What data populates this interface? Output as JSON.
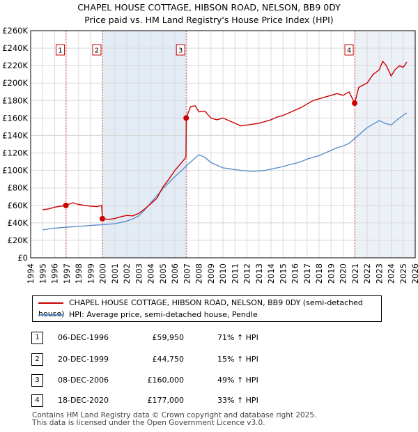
{
  "title_line1": "CHAPEL HOUSE COTTAGE, HIBSON ROAD, NELSON, BB9 0DY",
  "title_line2": "Price paid vs. HM Land Registry's House Price Index (HPI)",
  "chart_data": {
    "type": "line",
    "title": "CHAPEL HOUSE COTTAGE, HIBSON ROAD, NELSON, BB9 0DY",
    "subtitle": "Price paid vs. HM Land Registry's House Price Index (HPI)",
    "xlim": [
      1995.0,
      2026.0
    ],
    "ylim": [
      0,
      260000
    ],
    "x_ticks": [
      1994,
      1995,
      1996,
      1997,
      1998,
      1999,
      2000,
      2001,
      2002,
      2003,
      2004,
      2005,
      2006,
      2007,
      2008,
      2009,
      2010,
      2011,
      2012,
      2013,
      2014,
      2015,
      2016,
      2017,
      2018,
      2019,
      2020,
      2021,
      2022,
      2023,
      2024,
      2025,
      2026
    ],
    "y_ticks": [
      0,
      20000,
      40000,
      60000,
      80000,
      100000,
      120000,
      140000,
      160000,
      180000,
      200000,
      220000,
      240000,
      260000
    ],
    "y_tick_labels": [
      "£0",
      "£20K",
      "£40K",
      "£60K",
      "£80K",
      "£100K",
      "£120K",
      "£140K",
      "£160K",
      "£180K",
      "£200K",
      "£220K",
      "£240K",
      "£260K"
    ],
    "grid": true,
    "series": [
      {
        "name": "CHAPEL HOUSE COTTAGE, HIBSON ROAD, NELSON, BB9 0DY (semi-detached house)",
        "color": "#cc0000",
        "x": [
          1995.0,
          1995.5,
          1996.0,
          1996.5,
          1996.93,
          1997.5,
          1998.0,
          1998.5,
          1999.0,
          1999.5,
          1999.9,
          1999.97,
          2000.5,
          2001.0,
          2001.5,
          2002.0,
          2002.5,
          2003.0,
          2003.5,
          2004.0,
          2004.5,
          2005.0,
          2005.5,
          2006.0,
          2006.5,
          2006.92,
          2006.95,
          2007.3,
          2007.7,
          2008.0,
          2008.5,
          2009.0,
          2009.5,
          2010.0,
          2010.5,
          2011.0,
          2011.5,
          2012.0,
          2012.5,
          2013.0,
          2013.5,
          2014.0,
          2014.5,
          2015.0,
          2015.5,
          2016.0,
          2016.5,
          2017.0,
          2017.5,
          2018.0,
          2018.5,
          2019.0,
          2019.5,
          2020.0,
          2020.5,
          2020.96,
          2021.3,
          2021.7,
          2022.0,
          2022.5,
          2023.0,
          2023.3,
          2023.6,
          2024.0,
          2024.3,
          2024.7,
          2025.0,
          2025.3
        ],
        "values": [
          55000,
          56000,
          58000,
          59000,
          59950,
          63000,
          61000,
          60000,
          59000,
          58500,
          60000,
          44750,
          44000,
          45000,
          47000,
          48500,
          48000,
          51000,
          56000,
          62000,
          68000,
          81000,
          90000,
          100000,
          108000,
          115000,
          160000,
          173000,
          174000,
          167000,
          168000,
          160000,
          158000,
          160000,
          157000,
          154000,
          151000,
          152000,
          153000,
          154000,
          156000,
          158000,
          161000,
          163000,
          166000,
          169000,
          172000,
          176000,
          180000,
          182000,
          184000,
          186000,
          188000,
          186000,
          190000,
          177000,
          195000,
          198000,
          200000,
          210000,
          215000,
          225000,
          220000,
          208000,
          215000,
          220000,
          218000,
          224000
        ]
      },
      {
        "name": "HPI: Average price, semi-detached house, Pendle",
        "color": "#5b8ec9",
        "x": [
          1995.0,
          1995.5,
          1996.0,
          1996.5,
          1997.0,
          1997.5,
          1998.0,
          1998.5,
          1999.0,
          1999.5,
          2000.0,
          2000.5,
          2001.0,
          2001.5,
          2002.0,
          2002.5,
          2003.0,
          2003.5,
          2004.0,
          2004.5,
          2005.0,
          2005.5,
          2006.0,
          2006.5,
          2007.0,
          2007.5,
          2008.0,
          2008.5,
          2009.0,
          2009.5,
          2010.0,
          2010.5,
          2011.0,
          2011.5,
          2012.0,
          2012.5,
          2013.0,
          2013.5,
          2014.0,
          2014.5,
          2015.0,
          2015.5,
          2016.0,
          2016.5,
          2017.0,
          2017.5,
          2018.0,
          2018.5,
          2019.0,
          2019.5,
          2020.0,
          2020.5,
          2021.0,
          2021.5,
          2022.0,
          2022.5,
          2023.0,
          2023.5,
          2024.0,
          2024.5,
          2025.0,
          2025.3
        ],
        "values": [
          32000,
          33000,
          34000,
          34500,
          35000,
          35500,
          36000,
          36500,
          37000,
          37500,
          38000,
          38500,
          39000,
          40500,
          42000,
          44500,
          48000,
          55000,
          63000,
          71000,
          79000,
          86000,
          93000,
          99000,
          106000,
          112000,
          118000,
          115000,
          109000,
          106000,
          103000,
          102000,
          101000,
          100000,
          99500,
          99000,
          99500,
          100000,
          101500,
          103000,
          104500,
          106500,
          108000,
          110000,
          113000,
          115000,
          117000,
          120000,
          123000,
          126000,
          128000,
          131000,
          137000,
          143000,
          149000,
          153000,
          157000,
          154000,
          152000,
          158000,
          163000,
          166000
        ]
      }
    ],
    "markers": [
      {
        "label": "1",
        "x": 1996.93,
        "y": 59950
      },
      {
        "label": "2",
        "x": 1999.97,
        "y": 44750
      },
      {
        "label": "3",
        "x": 2006.94,
        "y": 160000
      },
      {
        "label": "4",
        "x": 2020.96,
        "y": 177000
      }
    ]
  },
  "legend": {
    "property": "CHAPEL HOUSE COTTAGE, HIBSON ROAD, NELSON, BB9 0DY (semi-detached house)",
    "hpi": "HPI: Average price, semi-detached house, Pendle"
  },
  "transactions": [
    {
      "num": "1",
      "date": "06-DEC-1996",
      "price": "£59,950",
      "hpi": "71% ↑ HPI"
    },
    {
      "num": "2",
      "date": "20-DEC-1999",
      "price": "£44,750",
      "hpi": "15% ↑ HPI"
    },
    {
      "num": "3",
      "date": "08-DEC-2006",
      "price": "£160,000",
      "hpi": "49% ↑ HPI"
    },
    {
      "num": "4",
      "date": "18-DEC-2020",
      "price": "£177,000",
      "hpi": "33% ↑ HPI"
    }
  ],
  "footer_line1": "Contains HM Land Registry data © Crown copyright and database right 2025.",
  "footer_line2": "This data is licensed under the Open Government Licence v3.0."
}
